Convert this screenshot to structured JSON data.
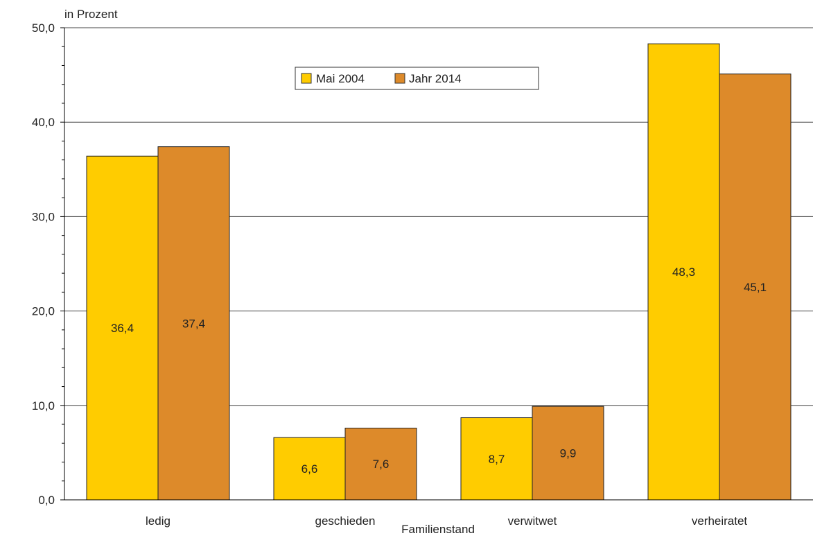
{
  "chart_data": {
    "type": "bar",
    "title": "",
    "ylabel": "in Prozent",
    "xlabel": "Familienstand",
    "ylim": [
      0,
      50
    ],
    "yticks": [
      "0,0",
      "10,0",
      "20,0",
      "30,0",
      "40,0",
      "50,0"
    ],
    "ytick_values": [
      0,
      10,
      20,
      30,
      40,
      50
    ],
    "grid": true,
    "legend_position": "top-center",
    "categories": [
      "ledig",
      "geschieden",
      "verwitwet",
      "verheiratet"
    ],
    "series": [
      {
        "name": "Mai 2004",
        "color": "#FFCC00",
        "values": [
          36.4,
          6.6,
          8.7,
          48.3
        ],
        "labels": [
          "36,4",
          "6,6",
          "8,7",
          "48,3"
        ]
      },
      {
        "name": "Jahr 2014",
        "color": "#DD8A2A",
        "values": [
          37.4,
          7.6,
          9.9,
          45.1
        ],
        "labels": [
          "37,4",
          "7,6",
          "9,9",
          "45,1"
        ]
      }
    ]
  }
}
